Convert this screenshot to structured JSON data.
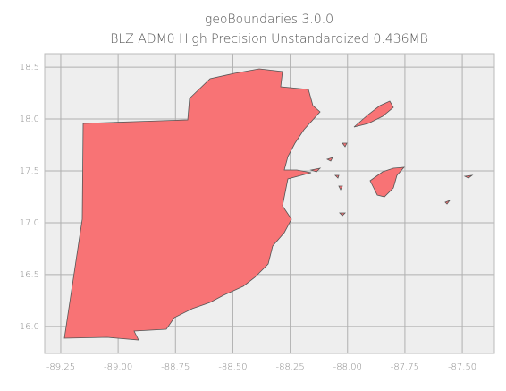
{
  "chart_data": {
    "type": "map",
    "title": "geoBoundaries 3.0.0",
    "subtitle": "BLZ ADM0 High Precision Unstandardized 0.436MB",
    "xlim": [
      -89.32,
      -87.36
    ],
    "ylim": [
      15.74,
      18.63
    ],
    "xticks": [
      -89.25,
      {
        "value": -89,
        "label": "-89.00"
      },
      -88.75,
      {
        "value": -88.5,
        "label": "-88.50"
      },
      -88.25,
      {
        "value": -88,
        "label": "-88.00"
      },
      -87.75,
      {
        "value": -87.5,
        "label": "-87.50"
      }
    ],
    "yticks": [
      {
        "value": 16,
        "label": "16.0"
      },
      16.5,
      {
        "value": 17,
        "label": "17.0"
      },
      17.5,
      {
        "value": 18,
        "label": "18.0"
      },
      18.5
    ],
    "grid": true,
    "color": "#f87375"
  }
}
